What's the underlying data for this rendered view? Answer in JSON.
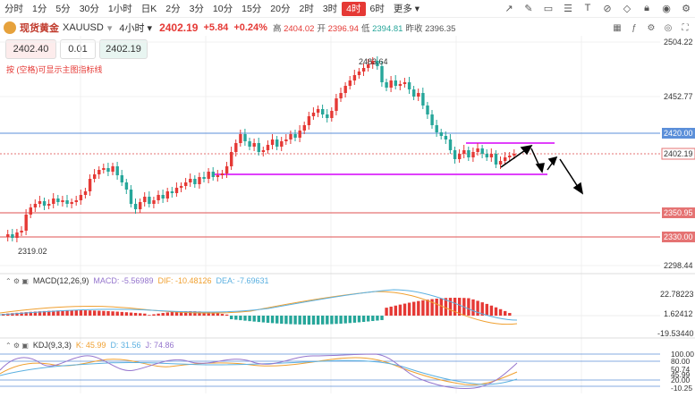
{
  "timeframes": [
    "分时",
    "1分",
    "5分",
    "30分",
    "1小时",
    "日K",
    "2分",
    "3分",
    "10分",
    "15分",
    "20分",
    "2时",
    "3时",
    "4时",
    "6时",
    "更多"
  ],
  "active_timeframe": "4时",
  "symbol": {
    "name": "现货黄金",
    "code": "XAUUSD",
    "period": "4小时",
    "price": "2402.19",
    "change": "+5.84",
    "change_pct": "+0.24%",
    "high_label": "高",
    "high": "2404.02",
    "open_label": "开",
    "open": "2396.94",
    "low_label": "低",
    "low": "2394.81",
    "prev_label": "昨收",
    "prev": "2396.35"
  },
  "order": {
    "sell": "2402.40",
    "qty": "0.01",
    "buy": "2402.19"
  },
  "hint": "按 (空格)可显示主图指标线",
  "colors": {
    "up": "#e53935",
    "down": "#26a69a",
    "accent": "#e53935",
    "line_pink": "#e040fb"
  },
  "main_axis": [
    "2504.22",
    "2452.77",
    "2402.19",
    "2350.95",
    "2330.00",
    "2298.44"
  ],
  "price_tags": {
    "blue_line": "2420.00",
    "current": "2402.19",
    "red1": "2350.95",
    "red2": "2330.00"
  },
  "annotations": {
    "peak": "2483.64",
    "trough": "2319.02"
  },
  "macd": {
    "label": "MACD(12,26,9)",
    "macd": "MACD: -5.56989",
    "dif": "DIF: -10.48126",
    "dea": "DEA: -7.69631",
    "axis": [
      "22.78223",
      "1.62412",
      "-19.53440"
    ]
  },
  "kdj": {
    "label": "KDJ(9,3,3)",
    "k": "K: 45.99",
    "d": "D: 31.56",
    "j": "J: 74.86",
    "axis": [
      "100.00",
      "80.00",
      "50.74",
      "45.99",
      "20.00",
      "-10.25"
    ]
  },
  "icons": [
    "arrow-icon",
    "pen-icon",
    "rect-icon",
    "hline-icon",
    "text-icon",
    "measure-icon",
    "eraser-icon",
    "lock-icon",
    "eye-icon",
    "settings-icon"
  ]
}
